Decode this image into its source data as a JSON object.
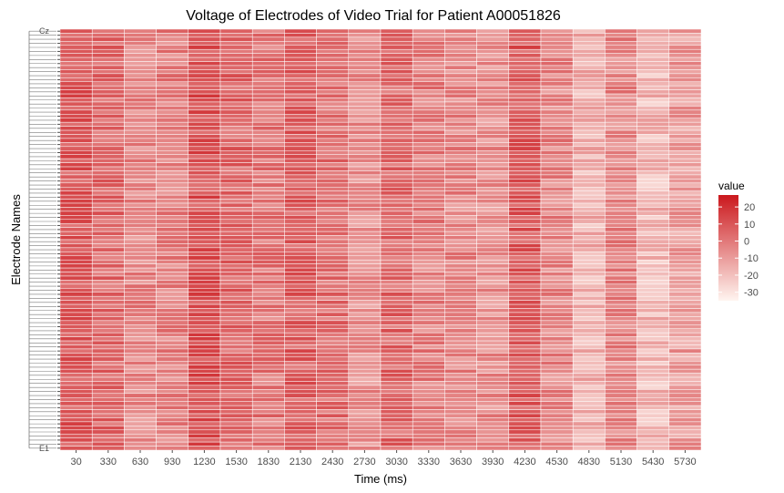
{
  "chart_data": {
    "type": "heatmap",
    "title": "Voltage of Electrodes of Video Trial for Patient A00051826",
    "xlabel": "Time (ms)",
    "ylabel": "Electrode Names",
    "x": [
      30,
      330,
      630,
      930,
      1230,
      1530,
      1830,
      2130,
      2430,
      2730,
      3030,
      3330,
      3630,
      3930,
      4230,
      4530,
      4830,
      5130,
      5430,
      5730
    ],
    "x_tick_labels": [
      "30",
      "330",
      "630",
      "930",
      "1230",
      "1530",
      "1830",
      "2130",
      "2430",
      "2730",
      "3030",
      "3330",
      "3630",
      "3930",
      "4230",
      "4530",
      "4830",
      "5130",
      "5430",
      "5730"
    ],
    "y_first": "E1",
    "y_last": "Cz",
    "y_count": 104,
    "colorscale": {
      "low": "#fff5f0",
      "high": "#cb181d"
    },
    "legend": {
      "title": "value",
      "ticks": [
        20,
        10,
        0,
        -10,
        -20,
        -30
      ],
      "range": [
        -35,
        27
      ]
    },
    "column_means": [
      8,
      4,
      -4,
      -2,
      10,
      4,
      0,
      6,
      2,
      -6,
      4,
      -2,
      -4,
      -6,
      8,
      -4,
      -16,
      -4,
      -18,
      -10
    ]
  }
}
